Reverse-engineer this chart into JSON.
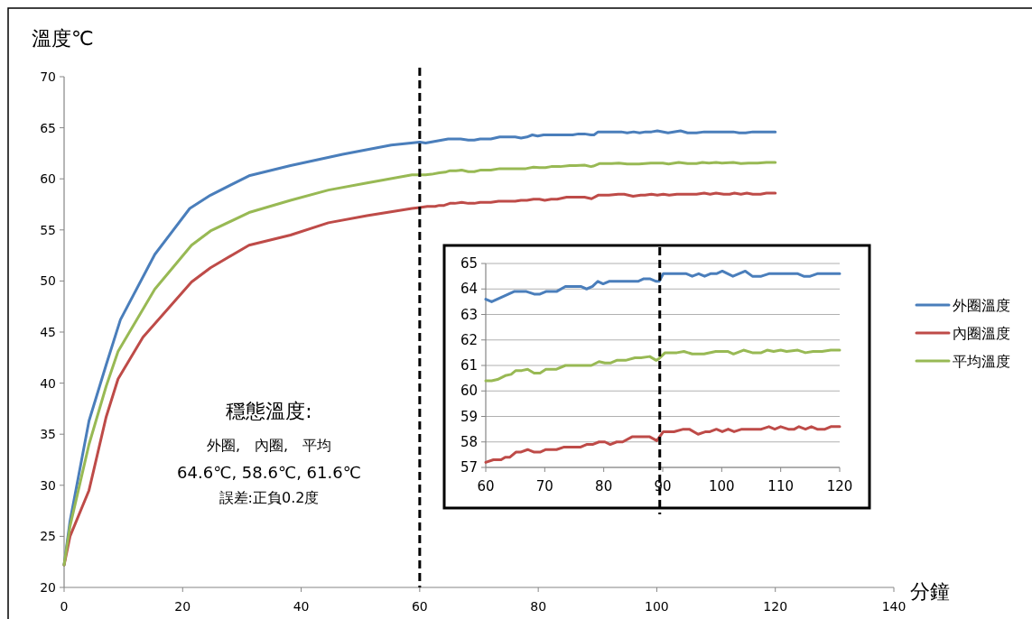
{
  "chart_data": [
    {
      "type": "line",
      "xlabel": "分鐘",
      "ylabel": "溫度℃",
      "xlim": [
        0,
        140
      ],
      "xticks": [
        0,
        20,
        40,
        60,
        80,
        100,
        120,
        140
      ],
      "ylim": [
        20,
        70
      ],
      "yticks": [
        20,
        25,
        30,
        35,
        40,
        45,
        50,
        55,
        60,
        65,
        70
      ],
      "grid": false,
      "legend": "right",
      "ref_lines": [
        {
          "axis": "x",
          "value": 60,
          "color": "#000000",
          "line_style": "dashed"
        }
      ],
      "annotations": [
        "穩態溫度:",
        "外圈,　內圈,　平均",
        "64.6℃, 58.6℃, 61.6℃",
        "誤差:正負0.2度"
      ],
      "series": [
        {
          "name": "外圈溫度",
          "color": "#4a7ebb",
          "x": [
            0,
            1,
            4.2,
            7.1,
            9.5,
            15.3,
            21.2,
            24.7,
            31.2,
            38.2,
            47,
            55.2,
            60,
            61,
            64.8,
            66.9,
            68.2,
            69.2,
            70.2,
            72,
            73.5,
            76.1,
            77.1,
            78.1,
            79,
            79.9,
            80.9,
            85.8,
            86.8,
            87.8,
            88.9,
            89.4,
            90.1,
            91.2,
            94,
            95,
            96.1,
            97.1,
            98.1,
            99.1,
            100.1,
            101.9,
            104,
            105.2,
            106.7,
            108,
            112.9,
            113.9,
            115,
            116.2,
            120
          ],
          "values": [
            22.2,
            26.5,
            36.3,
            41.8,
            46.2,
            52.6,
            57.1,
            58.4,
            60.3,
            61.3,
            62.4,
            63.3,
            63.6,
            63.5,
            63.9,
            63.9,
            63.8,
            63.8,
            63.9,
            63.9,
            64.1,
            64.1,
            64.0,
            64.1,
            64.3,
            64.2,
            64.3,
            64.3,
            64.4,
            64.4,
            64.3,
            64.3,
            64.6,
            64.6,
            64.6,
            64.5,
            64.6,
            64.5,
            64.6,
            64.6,
            64.7,
            64.5,
            64.7,
            64.5,
            64.5,
            64.6,
            64.6,
            64.5,
            64.5,
            64.6,
            64.6
          ]
        },
        {
          "name": "內圈溫度",
          "color": "#be4b48",
          "x": [
            0,
            1,
            4.2,
            7.1,
            9.1,
            13.3,
            21.5,
            24.7,
            31.2,
            38.2,
            44.6,
            51.1,
            58.7,
            60,
            61.3,
            62.6,
            63.3,
            64.1,
            65.1,
            65.9,
            67.1,
            68.2,
            69.2,
            70.2,
            72,
            73.3,
            76.1,
            77.1,
            78.1,
            79.2,
            80.2,
            81.1,
            82.2,
            83.2,
            84.8,
            87.8,
            89,
            90.1,
            91.9,
            93.5,
            94.5,
            96,
            97.3,
            98,
            99.1,
            100.1,
            101.1,
            102.1,
            103.4,
            106.7,
            108,
            109,
            110,
            111.3,
            112.3,
            113.1,
            114.2,
            115.2,
            116.2,
            117.5,
            118.5,
            120
          ],
          "values": [
            22.2,
            25,
            29.5,
            36.7,
            40.4,
            44.5,
            49.9,
            51.3,
            53.5,
            54.5,
            55.7,
            56.4,
            57.1,
            57.2,
            57.3,
            57.3,
            57.4,
            57.4,
            57.6,
            57.6,
            57.7,
            57.6,
            57.6,
            57.7,
            57.7,
            57.8,
            57.8,
            57.9,
            57.9,
            58.0,
            58.0,
            57.9,
            58.0,
            58.0,
            58.2,
            58.2,
            58.05,
            58.4,
            58.4,
            58.5,
            58.5,
            58.3,
            58.4,
            58.4,
            58.5,
            58.4,
            58.5,
            58.4,
            58.5,
            58.5,
            58.6,
            58.5,
            58.6,
            58.5,
            58.5,
            58.6,
            58.5,
            58.6,
            58.5,
            58.5,
            58.6,
            58.6
          ]
        },
        {
          "name": "平均溫度",
          "color": "#98b954",
          "x": [
            0,
            1,
            4.2,
            7.1,
            9.1,
            15.3,
            21.5,
            24.7,
            31.2,
            38.2,
            44.6,
            51.1,
            58.7,
            60,
            61,
            62,
            63.3,
            64.3,
            65.1,
            66.1,
            67.1,
            68.2,
            69.2,
            70.2,
            72,
            73.5,
            76.6,
            77.9,
            79.2,
            80.2,
            81.2,
            82.2,
            83.7,
            85.3,
            86.3,
            87.8,
            88.9,
            89.3,
            90.4,
            92.4,
            93.6,
            95,
            97,
            99,
            101,
            102,
            103.7,
            105.2,
            106.7,
            107.7,
            108.8,
            110,
            111,
            112.9,
            114.2,
            115.5,
            117,
            118.5,
            120
          ],
          "values": [
            22.2,
            26,
            34,
            39.7,
            43.1,
            49.2,
            53.5,
            54.9,
            56.7,
            57.9,
            58.9,
            59.6,
            60.4,
            60.4,
            60.4,
            60.45,
            60.6,
            60.65,
            60.8,
            60.8,
            60.85,
            60.7,
            60.7,
            60.85,
            60.85,
            61.0,
            61.0,
            61.0,
            61.15,
            61.1,
            61.1,
            61.2,
            61.2,
            61.3,
            61.3,
            61.35,
            61.2,
            61.25,
            61.5,
            61.5,
            61.55,
            61.45,
            61.45,
            61.55,
            61.55,
            61.45,
            61.6,
            61.5,
            61.5,
            61.6,
            61.55,
            61.6,
            61.55,
            61.6,
            61.5,
            61.55,
            61.55,
            61.6,
            61.6
          ]
        }
      ]
    },
    {
      "type": "line",
      "xlim": [
        60,
        120
      ],
      "xticks": [
        60,
        70,
        80,
        90,
        100,
        110,
        120
      ],
      "ylim": [
        57,
        65
      ],
      "yticks": [
        57,
        58,
        59,
        60,
        61,
        62,
        63,
        64,
        65
      ],
      "grid": "y",
      "ref_lines": [
        {
          "axis": "x",
          "value": 89.5,
          "color": "#000000",
          "line_style": "dashed"
        }
      ],
      "series": [
        {
          "color": "#4a7ebb",
          "x": [
            60,
            61,
            64.8,
            66.9,
            68.2,
            69.2,
            70.2,
            72,
            73.5,
            76.1,
            77.1,
            78.1,
            79,
            79.9,
            80.9,
            85.8,
            86.8,
            87.8,
            88.9,
            89.4,
            90.1,
            91.2,
            94,
            95,
            96.1,
            97.1,
            98.1,
            99.1,
            100.1,
            101.9,
            104,
            105.2,
            106.7,
            108,
            112.9,
            113.9,
            115,
            116.2,
            120
          ],
          "values": [
            63.6,
            63.5,
            63.9,
            63.9,
            63.8,
            63.8,
            63.9,
            63.9,
            64.1,
            64.1,
            64.0,
            64.1,
            64.3,
            64.2,
            64.3,
            64.3,
            64.4,
            64.4,
            64.3,
            64.3,
            64.6,
            64.6,
            64.6,
            64.5,
            64.6,
            64.5,
            64.6,
            64.6,
            64.7,
            64.5,
            64.7,
            64.5,
            64.5,
            64.6,
            64.6,
            64.5,
            64.5,
            64.6,
            64.6
          ]
        },
        {
          "color": "#be4b48",
          "x": [
            60,
            61.3,
            62.6,
            63.3,
            64.1,
            65.1,
            65.9,
            67.1,
            68.2,
            69.2,
            70.2,
            72,
            73.3,
            76.1,
            77.1,
            78.1,
            79.2,
            80.2,
            81.1,
            82.2,
            83.2,
            84.8,
            87.8,
            89,
            90.1,
            91.9,
            93.5,
            94.5,
            96,
            97.3,
            98,
            99.1,
            100.1,
            101.1,
            102.1,
            103.4,
            106.7,
            108,
            109,
            110,
            111.3,
            112.3,
            113.1,
            114.2,
            115.2,
            116.2,
            117.5,
            118.5,
            120
          ],
          "values": [
            57.2,
            57.3,
            57.3,
            57.4,
            57.4,
            57.6,
            57.6,
            57.7,
            57.6,
            57.6,
            57.7,
            57.7,
            57.8,
            57.8,
            57.9,
            57.9,
            58.0,
            58.0,
            57.9,
            58.0,
            58.0,
            58.2,
            58.2,
            58.05,
            58.4,
            58.4,
            58.5,
            58.5,
            58.3,
            58.4,
            58.4,
            58.5,
            58.4,
            58.5,
            58.4,
            58.5,
            58.5,
            58.6,
            58.5,
            58.6,
            58.5,
            58.5,
            58.6,
            58.5,
            58.6,
            58.5,
            58.5,
            58.6,
            58.6
          ]
        },
        {
          "color": "#98b954",
          "x": [
            60,
            61,
            62,
            63.3,
            64.3,
            65.1,
            66.1,
            67.1,
            68.2,
            69.2,
            70.2,
            72,
            73.5,
            76.6,
            77.9,
            79.2,
            80.2,
            81.2,
            82.2,
            83.7,
            85.3,
            86.3,
            87.8,
            88.9,
            89.3,
            90.4,
            92.4,
            93.6,
            95,
            97,
            99,
            101,
            102,
            103.7,
            105.2,
            106.7,
            107.7,
            108.8,
            110,
            111,
            112.9,
            114.2,
            115.5,
            117,
            118.5,
            120
          ],
          "values": [
            60.4,
            60.4,
            60.45,
            60.6,
            60.65,
            60.8,
            60.8,
            60.85,
            60.7,
            60.7,
            60.85,
            60.85,
            61.0,
            61.0,
            61.0,
            61.15,
            61.1,
            61.1,
            61.2,
            61.2,
            61.3,
            61.3,
            61.35,
            61.2,
            61.25,
            61.5,
            61.5,
            61.55,
            61.45,
            61.45,
            61.55,
            61.55,
            61.45,
            61.6,
            61.5,
            61.5,
            61.6,
            61.55,
            61.6,
            61.55,
            61.6,
            61.5,
            61.55,
            61.55,
            61.6,
            61.6
          ]
        }
      ]
    }
  ]
}
